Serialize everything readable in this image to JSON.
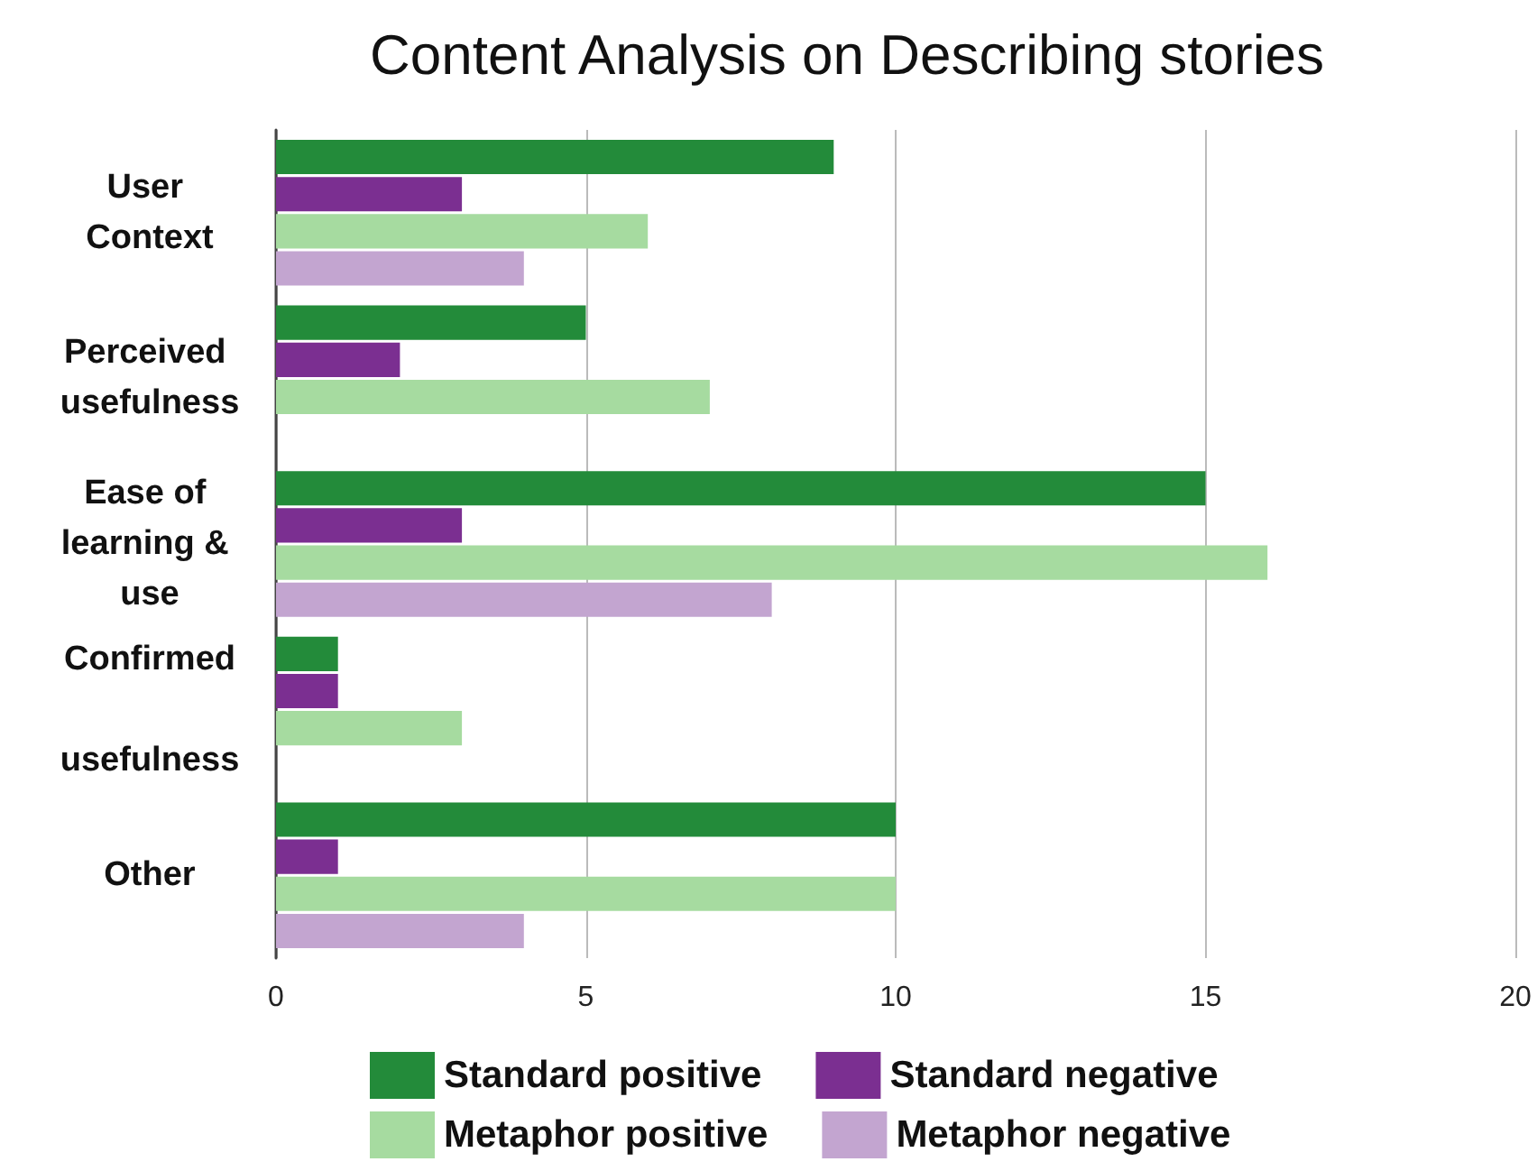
{
  "chart_data": {
    "type": "bar",
    "orientation": "horizontal",
    "title": "Content Analysis on Describing stories",
    "categories": [
      "User Context",
      "Perceived usefulness",
      "Ease of learning & use",
      "Confirmed usefulness",
      "Other"
    ],
    "series": [
      {
        "name": "Standard positive",
        "color": "#238b3a",
        "values": [
          9,
          5,
          15,
          1,
          10
        ]
      },
      {
        "name": "Standard negative",
        "color": "#7b2f91",
        "values": [
          3,
          2,
          3,
          1,
          1
        ]
      },
      {
        "name": "Metaphor positive",
        "color": "#a6dba0",
        "values": [
          6,
          7,
          16,
          3,
          10
        ]
      },
      {
        "name": "Metaphor negative",
        "color": "#c3a5d0",
        "values": [
          4,
          0,
          8,
          0,
          4
        ]
      }
    ],
    "xlim": [
      0,
      20
    ],
    "xticks": [
      0,
      5,
      10,
      15,
      20
    ],
    "grid": "x",
    "legend": "bottom"
  }
}
